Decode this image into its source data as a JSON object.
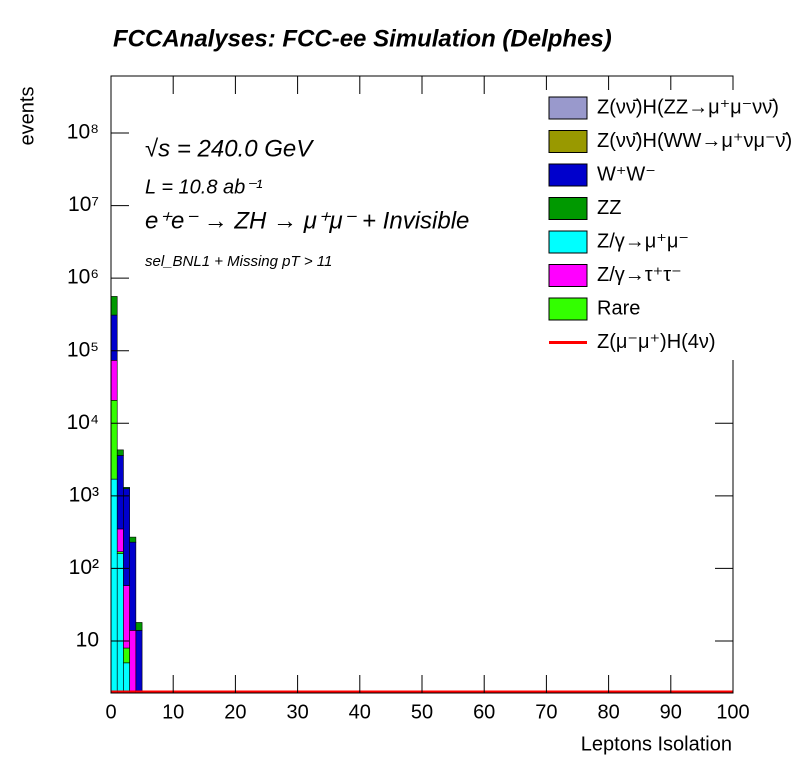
{
  "chart_data": {
    "type": "histogram",
    "title": "FCCAnalyses: FCC-ee Simulation (Delphes)",
    "x_label": "Leptons Isolation",
    "y_label": "events",
    "annotations": [
      "√s = 240.0 GeV",
      "L = 10.8 ab⁻¹",
      "e⁺e⁻ → ZH → μ⁺μ⁻ + Invisible",
      "sel_BNL1 + Missing pT > 11"
    ],
    "bins": [
      0,
      1,
      2,
      3,
      4,
      5,
      100
    ],
    "series": [
      {
        "name": "Z(νν̄)H(ZZ→μ⁺μ⁻νν̄)",
        "color": "#9999cc",
        "values": [
          0,
          0,
          0,
          0,
          0,
          0
        ]
      },
      {
        "name": "Z(νν̄)H(WW→μ⁺νμ⁻ν̄)",
        "color": "#999900",
        "values": [
          0,
          0,
          0,
          0,
          0,
          0
        ]
      },
      {
        "name": "W⁺W⁻",
        "color": "#0000cc",
        "values": [
          236000,
          3250,
          1200,
          216,
          14,
          0
        ]
      },
      {
        "name": "ZZ",
        "color": "#009900",
        "values": [
          250000,
          700,
          50,
          40,
          4,
          0
        ]
      },
      {
        "name": "Z/γ→μ⁺μ⁻",
        "color": "#00ffff",
        "values": [
          1700,
          160,
          5,
          0,
          0,
          0
        ]
      },
      {
        "name": "Z/γ→τ⁺τ⁻",
        "color": "#ff00ff",
        "values": [
          53000,
          180,
          50,
          12,
          0,
          0
        ]
      },
      {
        "name": "Rare",
        "color": "#33ff00",
        "values": [
          19000,
          10,
          3,
          2,
          0,
          0
        ]
      },
      {
        "name": "Z(μ⁻μ⁺)H(4ν)",
        "color": "#ff0000",
        "style": "line",
        "values": [
          0,
          0,
          0,
          0,
          0,
          0
        ]
      }
    ],
    "log_y": true,
    "xlim": [
      0,
      100
    ],
    "xticks": [
      0,
      10,
      20,
      30,
      40,
      50,
      60,
      70,
      80,
      90,
      100
    ],
    "ylim": [
      1.92,
      610000000
    ],
    "yticks": [
      10,
      {
        "value": 100,
        "label": "10²"
      },
      {
        "value": 1000,
        "label": "10³"
      },
      {
        "value": 10000,
        "label": "10⁴"
      },
      {
        "value": 100000,
        "label": "10⁵"
      },
      {
        "value": 1000000,
        "label": "10⁶"
      },
      {
        "value": 10000000,
        "label": "10⁷"
      },
      {
        "value": 100000000,
        "label": "10⁸"
      }
    ],
    "legend": "top-right"
  }
}
